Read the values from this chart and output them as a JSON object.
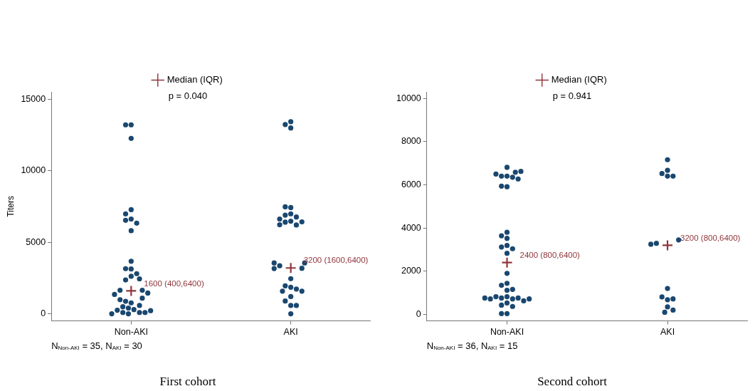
{
  "chart_data": [
    {
      "type": "scatter",
      "title": "First cohort",
      "ylabel": "Titers",
      "categories": [
        "Non-AKI",
        "AKI"
      ],
      "ylim": [
        -500,
        15500
      ],
      "yticks": [
        0,
        5000,
        10000,
        15000
      ],
      "grid": false,
      "legend": "top",
      "marker": "circle",
      "series": [
        {
          "color": "#1a476f",
          "x": [
            "Non-AKI",
            "Non-AKI",
            "Non-AKI",
            "Non-AKI",
            "Non-AKI",
            "Non-AKI",
            "Non-AKI",
            "Non-AKI",
            "Non-AKI",
            "Non-AKI",
            "Non-AKI",
            "Non-AKI",
            "Non-AKI",
            "Non-AKI",
            "Non-AKI",
            "Non-AKI",
            "Non-AKI",
            "Non-AKI",
            "Non-AKI",
            "Non-AKI",
            "Non-AKI",
            "Non-AKI",
            "Non-AKI",
            "Non-AKI",
            "Non-AKI",
            "Non-AKI",
            "Non-AKI",
            "Non-AKI",
            "Non-AKI",
            "Non-AKI",
            "Non-AKI",
            "Non-AKI",
            "Non-AKI",
            "Non-AKI",
            "Non-AKI",
            "AKI",
            "AKI",
            "AKI",
            "AKI",
            "AKI",
            "AKI",
            "AKI",
            "AKI",
            "AKI",
            "AKI",
            "AKI",
            "AKI",
            "AKI",
            "AKI",
            "AKI",
            "AKI",
            "AKI",
            "AKI",
            "AKI",
            "AKI",
            "AKI",
            "AKI",
            "AKI",
            "AKI",
            "AKI",
            "AKI",
            "AKI",
            "AKI",
            "AKI",
            "AKI"
          ],
          "values": [
            13200,
            13200,
            12250,
            7270,
            6980,
            6620,
            6530,
            6330,
            5800,
            3670,
            3130,
            3150,
            2800,
            2620,
            2360,
            2440,
            1640,
            1640,
            1350,
            1450,
            980,
            760,
            1090,
            870,
            400,
            290,
            490,
            90,
            90,
            250,
            90,
            0,
            0,
            220,
            580,
            13420,
            12980,
            13220,
            7420,
            7470,
            6980,
            6890,
            6760,
            6620,
            6470,
            6400,
            6200,
            6220,
            6420,
            3350,
            3180,
            3550,
            3160,
            3550,
            2450,
            1850,
            1950,
            1730,
            1580,
            1580,
            1200,
            890,
            580,
            580,
            0
          ]
        },
        {
          "name": "Median (IQR)",
          "color": "#90353b",
          "marker": "cross",
          "x": [
            "Non-AKI",
            "AKI"
          ],
          "values": [
            1600,
            3200
          ]
        }
      ],
      "annotations": [
        "p = 0.040",
        "N$_{Non-AKI}$ = 35, N$_{AKI}$ = 30",
        {
          "text": "1600 (400,6400)",
          "x": "Non-AKI",
          "y": 1600
        },
        {
          "text": "3200 (1600,6400)",
          "x": "AKI",
          "y": 3200
        }
      ]
    },
    {
      "type": "scatter",
      "title": "Second cohort",
      "categories": [
        "Non-AKI",
        "AKI"
      ],
      "ylim": [
        -300,
        10300
      ],
      "yticks": [
        0,
        2000,
        4000,
        6000,
        8000,
        10000
      ],
      "grid": false,
      "legend": "top",
      "marker": "circle",
      "series": [
        {
          "color": "#1a476f",
          "x": [
            "Non-AKI",
            "Non-AKI",
            "Non-AKI",
            "Non-AKI",
            "Non-AKI",
            "Non-AKI",
            "Non-AKI",
            "Non-AKI",
            "Non-AKI",
            "Non-AKI",
            "Non-AKI",
            "Non-AKI",
            "Non-AKI",
            "Non-AKI",
            "Non-AKI",
            "Non-AKI",
            "Non-AKI",
            "Non-AKI",
            "Non-AKI",
            "Non-AKI",
            "Non-AKI",
            "Non-AKI",
            "Non-AKI",
            "Non-AKI",
            "Non-AKI",
            "Non-AKI",
            "Non-AKI",
            "Non-AKI",
            "Non-AKI",
            "Non-AKI",
            "Non-AKI",
            "Non-AKI",
            "Non-AKI",
            "Non-AKI",
            "Non-AKI",
            "Non-AKI",
            "AKI",
            "AKI",
            "AKI",
            "AKI",
            "AKI",
            "AKI",
            "AKI",
            "AKI",
            "AKI",
            "AKI",
            "AKI",
            "AKI",
            "AKI",
            "AKI",
            "AKI"
          ],
          "values": [
            6400,
            6400,
            6350,
            5910,
            6500,
            6580,
            6810,
            6620,
            6270,
            5940,
            3800,
            3520,
            3640,
            3190,
            3120,
            3040,
            2830,
            1900,
            1440,
            1350,
            1120,
            1160,
            820,
            760,
            720,
            820,
            760,
            720,
            630,
            760,
            530,
            430,
            370,
            40,
            40,
            720,
            7160,
            6670,
            6520,
            6400,
            6400,
            3290,
            3450,
            3250,
            1200,
            680,
            810,
            720,
            350,
            100,
            200
          ]
        },
        {
          "name": "Median (IQR)",
          "color": "#90353b",
          "marker": "cross",
          "x": [
            "Non-AKI",
            "AKI"
          ],
          "values": [
            2400,
            3200
          ]
        }
      ],
      "annotations": [
        "p = 0.941",
        "N$_{Non-AKI}$ = 36, N$_{AKI}$ = 15",
        {
          "text": "2400 (800,6400)",
          "x": "Non-AKI",
          "y": 2400
        },
        {
          "text": "3200 (800,6400)",
          "x": "AKI",
          "y": 3200
        }
      ]
    }
  ]
}
